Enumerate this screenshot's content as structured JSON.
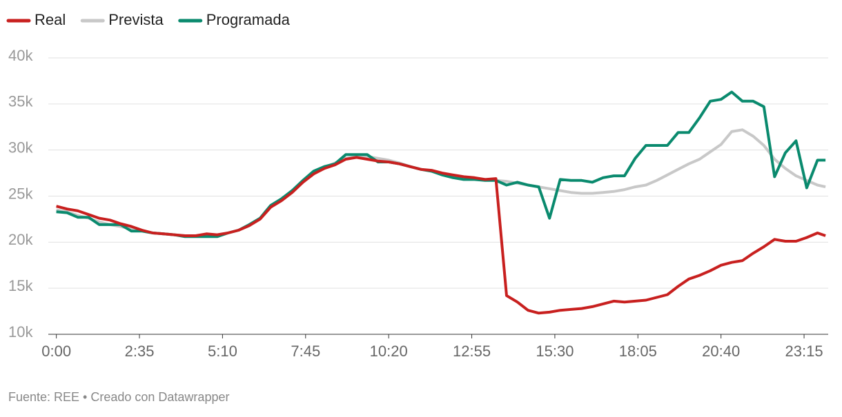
{
  "chart_data": {
    "type": "line",
    "x": [
      0,
      20,
      40,
      60,
      80,
      100,
      120,
      140,
      160,
      180,
      200,
      220,
      240,
      260,
      280,
      300,
      320,
      340,
      360,
      380,
      400,
      420,
      440,
      460,
      480,
      500,
      520,
      540,
      560,
      580,
      600,
      620,
      640,
      660,
      680,
      700,
      720,
      740,
      760,
      780,
      800,
      820,
      840,
      860,
      880,
      900,
      920,
      940,
      960,
      980,
      1000,
      1020,
      1040,
      1060,
      1080,
      1100,
      1120,
      1140,
      1160,
      1180,
      1200,
      1220,
      1240,
      1260,
      1280,
      1300,
      1320,
      1340,
      1360,
      1380,
      1400,
      1420,
      1435
    ],
    "series": [
      {
        "name": "Real",
        "color": "#c8201f",
        "values": [
          23900,
          23600,
          23400,
          23000,
          22600,
          22400,
          22000,
          21700,
          21300,
          21000,
          20900,
          20800,
          20700,
          20700,
          20900,
          20800,
          21000,
          21300,
          21800,
          22500,
          23800,
          24500,
          25400,
          26500,
          27400,
          28000,
          28400,
          29000,
          29200,
          29000,
          28800,
          28700,
          28500,
          28200,
          27900,
          27800,
          27500,
          27300,
          27100,
          27000,
          26800,
          26900,
          14200,
          13500,
          12600,
          12300,
          12400,
          12600,
          12700,
          12800,
          13000,
          13300,
          13600,
          13500,
          13600,
          13700,
          14000,
          14300,
          15200,
          16000,
          16400,
          16900,
          17500,
          17800,
          18000,
          18800,
          19500,
          20300,
          20100,
          20100,
          20500,
          21000,
          20700
        ]
      },
      {
        "name": "Prevista",
        "color": "#c8c8c8",
        "values": [
          23500,
          23300,
          22900,
          22600,
          22200,
          21900,
          21700,
          21400,
          21200,
          21000,
          20900,
          20800,
          20700,
          20700,
          20700,
          20700,
          21000,
          21300,
          21800,
          22600,
          23800,
          24700,
          25600,
          26500,
          27400,
          28100,
          28600,
          29100,
          29300,
          29300,
          29100,
          28900,
          28600,
          28200,
          27900,
          27700,
          27400,
          27200,
          27000,
          26900,
          26800,
          26700,
          26600,
          26400,
          26200,
          26000,
          25800,
          25600,
          25400,
          25300,
          25300,
          25400,
          25500,
          25700,
          26000,
          26200,
          26700,
          27300,
          27900,
          28500,
          29000,
          29800,
          30600,
          32000,
          32200,
          31500,
          30500,
          29000,
          28000,
          27200,
          26700,
          26200,
          26000
        ]
      },
      {
        "name": "Programada",
        "color": "#0a8a6e",
        "values": [
          23300,
          23200,
          22700,
          22700,
          21900,
          21900,
          21900,
          21200,
          21200,
          21000,
          20900,
          20800,
          20600,
          20600,
          20600,
          20600,
          21000,
          21300,
          21900,
          22600,
          24000,
          24700,
          25600,
          26700,
          27700,
          28200,
          28500,
          29500,
          29500,
          29500,
          28700,
          28700,
          28500,
          28200,
          27900,
          27700,
          27300,
          27000,
          26800,
          26800,
          26700,
          26700,
          26200,
          26500,
          26200,
          26000,
          22600,
          26800,
          26700,
          26700,
          26500,
          27000,
          27200,
          27200,
          29100,
          30500,
          30500,
          30500,
          31900,
          31900,
          33500,
          35300,
          35500,
          36300,
          35300,
          35300,
          34700,
          27100,
          29700,
          31000,
          25900,
          28900,
          28900
        ]
      }
    ],
    "xlim": [
      -15,
      1440
    ],
    "ylim": [
      10000,
      40000
    ],
    "xticks": [
      {
        "value": 0,
        "label": "0:00"
      },
      {
        "value": 155,
        "label": "2:35"
      },
      {
        "value": 310,
        "label": "5:10"
      },
      {
        "value": 465,
        "label": "7:45"
      },
      {
        "value": 620,
        "label": "10:20"
      },
      {
        "value": 775,
        "label": "12:55"
      },
      {
        "value": 930,
        "label": "15:30"
      },
      {
        "value": 1085,
        "label": "18:05"
      },
      {
        "value": 1240,
        "label": "20:40"
      },
      {
        "value": 1395,
        "label": "23:15"
      }
    ],
    "yticks": [
      {
        "value": 10000,
        "label": "10k"
      },
      {
        "value": 15000,
        "label": "15k"
      },
      {
        "value": 20000,
        "label": "20k"
      },
      {
        "value": 25000,
        "label": "25k"
      },
      {
        "value": 30000,
        "label": "30k"
      },
      {
        "value": 35000,
        "label": "35k"
      },
      {
        "value": 40000,
        "label": "40k"
      }
    ],
    "grid": true,
    "legend": "top-left",
    "source": "Fuente: REE • Creado con Datawrapper"
  }
}
